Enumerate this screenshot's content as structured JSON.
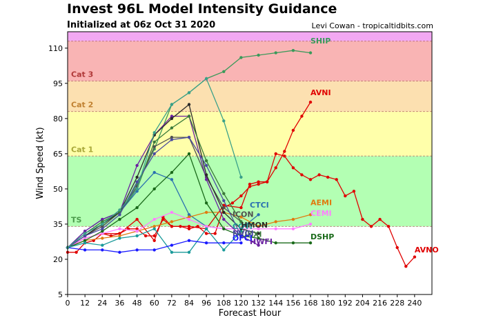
{
  "header": {
    "title": "Invest 96L Model Intensity Guidance",
    "subtitle": "Initialized at 06z Oct 31 2020",
    "credit": "Levi Cowan - tropicaltidbits.com"
  },
  "chart_data": {
    "type": "line",
    "xlabel": "Forecast Hour",
    "ylabel": "Wind Speed (kt)",
    "xlim": [
      0,
      252
    ],
    "ylim": [
      5,
      117
    ],
    "xticks": [
      0,
      12,
      24,
      36,
      48,
      60,
      72,
      84,
      96,
      108,
      120,
      132,
      144,
      156,
      168,
      180,
      192,
      204,
      216,
      228,
      240
    ],
    "yticks": [
      5,
      20,
      35,
      50,
      65,
      80,
      95,
      110
    ],
    "grid": false,
    "bands": [
      {
        "label": "",
        "from": 5,
        "to": 34,
        "color": "#ffffff",
        "label_color": ""
      },
      {
        "label": "TS",
        "from": 34,
        "to": 64,
        "color": "#b3ffb3",
        "label_color": "#4a9a4a"
      },
      {
        "label": "Cat 1",
        "from": 64,
        "to": 83,
        "color": "#ffffaa",
        "label_color": "#a8a838"
      },
      {
        "label": "Cat 2",
        "from": 83,
        "to": 96,
        "color": "#fce0b0",
        "label_color": "#c08030"
      },
      {
        "label": "Cat 3",
        "from": 96,
        "to": 113,
        "color": "#f9b4b4",
        "label_color": "#b03838"
      },
      {
        "label": "",
        "from": 113,
        "to": 117,
        "color": "#f2a8f2",
        "label_color": ""
      }
    ],
    "series": [
      {
        "name": "SHIP",
        "color": "#3a9a5a",
        "label_pos": [
          168,
          112
        ],
        "x": [
          0,
          12,
          24,
          36,
          48,
          60,
          72,
          84,
          96,
          108,
          120,
          132,
          144,
          156,
          168
        ],
        "y": [
          25,
          30,
          35,
          40,
          52,
          67,
          86,
          91,
          97,
          100,
          106,
          107,
          108,
          109,
          108
        ]
      },
      {
        "name": "AVNI",
        "color": "#e00000",
        "label_pos": [
          168,
          90
        ],
        "x": [
          0,
          6,
          12,
          18,
          24,
          30,
          36,
          42,
          48,
          54,
          60,
          66,
          72,
          78,
          84,
          90,
          96,
          102,
          108,
          114,
          120,
          126,
          132,
          138,
          144,
          150,
          156,
          162,
          168
        ],
        "y": [
          23,
          23,
          27,
          28,
          31,
          30,
          31,
          33,
          33,
          30,
          30,
          37,
          34,
          34,
          33,
          34,
          31,
          31,
          42,
          44,
          47,
          51,
          52,
          53,
          59,
          66,
          75,
          81,
          87
        ]
      },
      {
        "name": "AVNO",
        "color": "#e00000",
        "label_pos": [
          240,
          23
        ],
        "x": [
          0,
          12,
          24,
          36,
          48,
          60,
          66,
          72,
          84,
          96,
          108,
          120,
          126,
          132,
          138,
          144,
          150,
          156,
          162,
          168,
          174,
          180,
          186,
          192,
          198,
          204,
          210,
          216,
          222,
          228,
          234,
          240
        ],
        "y": [
          25,
          29,
          31,
          31,
          37,
          28,
          38,
          34,
          34,
          33,
          43,
          42,
          52,
          53,
          53,
          65,
          64,
          59,
          56,
          54,
          56,
          55,
          54,
          47,
          49,
          37,
          34,
          37,
          34,
          25,
          17,
          21
        ]
      },
      {
        "name": "CTCI",
        "color": "#2a70b0",
        "label_pos": [
          126,
          42
        ],
        "x": [
          0,
          12,
          24,
          36,
          48,
          60,
          72,
          84,
          96,
          108,
          120,
          132
        ],
        "y": [
          25,
          32,
          37,
          40,
          49,
          57,
          54,
          39,
          34,
          33,
          33,
          39
        ]
      },
      {
        "name": "AEMI",
        "color": "#e07a10",
        "label_pos": [
          168,
          43
        ],
        "x": [
          0,
          12,
          24,
          36,
          48,
          60,
          72,
          84,
          96,
          108,
          120,
          132,
          144,
          156,
          168
        ],
        "y": [
          25,
          28,
          29,
          30,
          32,
          34,
          36,
          38,
          40,
          40,
          38,
          34,
          36,
          37,
          39
        ]
      },
      {
        "name": "CEMI",
        "color": "#ff7fff",
        "label_pos": [
          168,
          38.5
        ],
        "x": [
          0,
          12,
          24,
          36,
          48,
          60,
          72,
          84,
          96,
          108,
          120,
          132,
          144,
          156,
          168
        ],
        "y": [
          25,
          29,
          31,
          33,
          32,
          37,
          40,
          37,
          34,
          33,
          33,
          33,
          33,
          33,
          35
        ]
      },
      {
        "name": "ICON",
        "color": "#505050",
        "label_pos": [
          114,
          38
        ],
        "x": [
          0,
          12,
          24,
          36,
          48,
          60,
          72,
          84,
          96,
          108,
          120
        ],
        "y": [
          25,
          30,
          34,
          40,
          51,
          68,
          72,
          72,
          55,
          42,
          36
        ]
      },
      {
        "name": "DSHP",
        "color": "#1a6a1a",
        "label_pos": [
          168,
          28.5
        ],
        "x": [
          0,
          12,
          24,
          36,
          48,
          60,
          72,
          84,
          96,
          108,
          120,
          132,
          144,
          156,
          168
        ],
        "y": [
          25,
          28,
          32,
          37,
          42,
          50,
          57,
          65,
          44,
          33,
          30,
          29,
          27,
          27,
          27
        ]
      },
      {
        "name": "HWFI",
        "color": "#6a20a0",
        "label_pos": [
          126,
          26.5
        ],
        "x": [
          0,
          12,
          24,
          36,
          48,
          60,
          72,
          84,
          96,
          108,
          120,
          132
        ],
        "y": [
          25,
          32,
          37,
          40,
          60,
          73,
          81,
          81,
          54,
          37,
          30,
          26
        ]
      },
      {
        "name": "COTI",
        "color": "#1a9a9a",
        "label_pos": [
          114,
          33
        ],
        "x": [
          0,
          12,
          24,
          36,
          48,
          60,
          72,
          84,
          96,
          108,
          120
        ],
        "y": [
          25,
          27,
          26,
          29,
          30,
          33,
          23,
          23,
          33,
          24,
          32
        ]
      },
      {
        "name": "HMON",
        "color": "#2a2a2a",
        "label_pos": [
          120,
          33.5
        ],
        "x": [
          0,
          12,
          24,
          36,
          48,
          60,
          72,
          84,
          96,
          108,
          120,
          132
        ],
        "y": [
          25,
          30,
          35,
          40,
          55,
          73,
          80,
          86,
          56,
          40,
          33,
          31
        ]
      },
      {
        "name": "UKXI",
        "color": "#3a7a3a",
        "label_pos": [
          120,
          29.5
        ],
        "x": [
          0,
          12,
          24,
          36,
          48,
          60,
          72,
          84,
          96,
          108,
          120
        ],
        "y": [
          25,
          31,
          36,
          40,
          50,
          70,
          76,
          81,
          62,
          48,
          36
        ]
      },
      {
        "name": "NVGI",
        "color": "#4a4aa0",
        "label_pos": [
          114,
          30
        ],
        "x": [
          0,
          12,
          24,
          36,
          48,
          60,
          72,
          84,
          96,
          108,
          120
        ],
        "y": [
          25,
          30,
          33,
          39,
          53,
          65,
          71,
          72,
          60,
          45,
          30
        ]
      },
      {
        "name": "OFCI",
        "color": "#1a1aff",
        "label_pos": [
          114,
          28
        ],
        "x": [
          0,
          12,
          24,
          36,
          48,
          60,
          72,
          84,
          96,
          108,
          120
        ],
        "y": [
          25,
          24,
          24,
          23,
          24,
          24,
          26,
          28,
          27,
          27,
          27
        ]
      },
      {
        "name": "",
        "color": "#3aa08a",
        "label_pos": null,
        "x": [
          0,
          12,
          24,
          36,
          48,
          60,
          72,
          84,
          96,
          108,
          120
        ],
        "y": [
          25,
          31,
          35,
          41,
          50,
          74,
          86,
          91,
          97,
          79,
          55
        ]
      }
    ]
  }
}
